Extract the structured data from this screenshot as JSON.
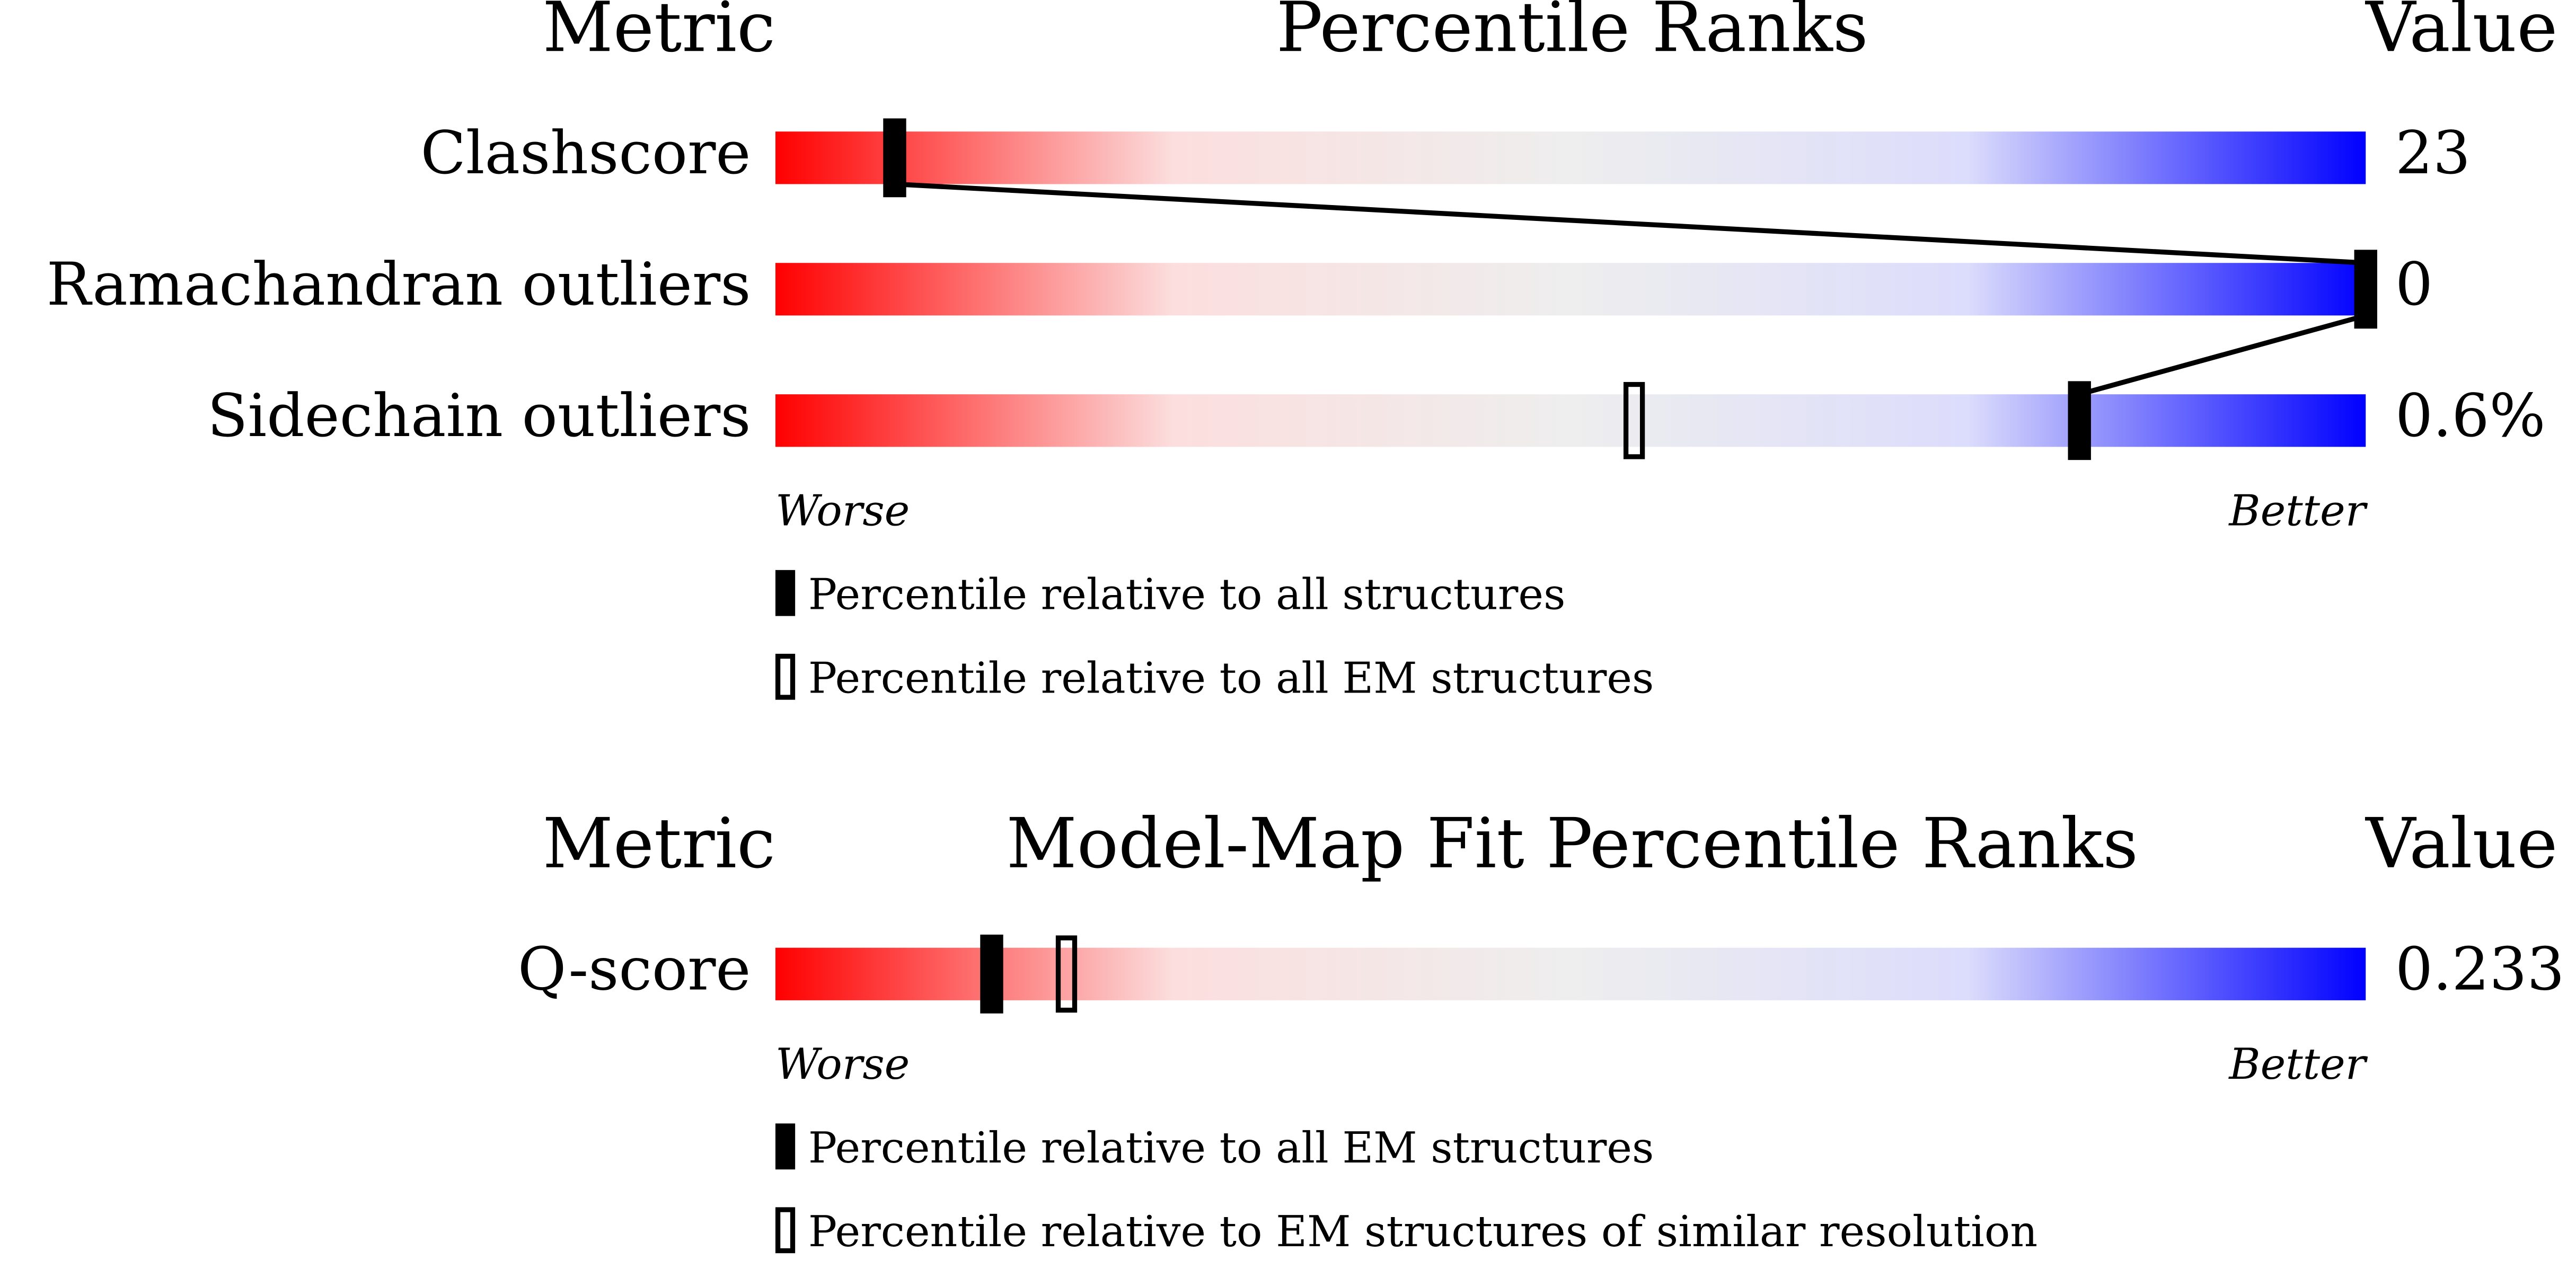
{
  "chart_data": [
    {
      "type": "percentile",
      "metric_header": "Metric",
      "title": "Percentile Ranks",
      "value_header": "Value",
      "categories": [
        "Clashscore",
        "Ramachandran outliers",
        "Sidechain outliers"
      ],
      "metric_values": [
        "23",
        "0",
        "0.6%"
      ],
      "xlim": [
        0,
        100
      ],
      "worse_label": "Worse",
      "better_label": "Better",
      "scale_colors": [
        "#ff0000",
        "#fcdede",
        "#eeeeee",
        "#dcdcfc",
        "#0000ff"
      ],
      "series": [
        {
          "name": "Percentile relative to all structures",
          "style": "filled",
          "color": "#000000",
          "values": [
            7.5,
            100,
            82
          ]
        },
        {
          "name": "Percentile relative to all EM structures",
          "style": "open",
          "color": "#000000",
          "values": [
            null,
            null,
            54
          ]
        }
      ]
    },
    {
      "type": "percentile",
      "metric_header": "Metric",
      "title": "Model-Map Fit Percentile Ranks",
      "value_header": "Value",
      "categories": [
        "Q-score"
      ],
      "metric_values": [
        "0.233"
      ],
      "xlim": [
        0,
        100
      ],
      "worse_label": "Worse",
      "better_label": "Better",
      "scale_colors": [
        "#ff0000",
        "#fcdede",
        "#eeeeee",
        "#dcdcfc",
        "#0000ff"
      ],
      "series": [
        {
          "name": "Percentile relative to all EM structures",
          "style": "filled",
          "color": "#000000",
          "values": [
            13.6
          ]
        },
        {
          "name": "Percentile relative to EM structures of similar resolution",
          "style": "open",
          "color": "#000000",
          "values": [
            18.3
          ]
        }
      ]
    }
  ]
}
